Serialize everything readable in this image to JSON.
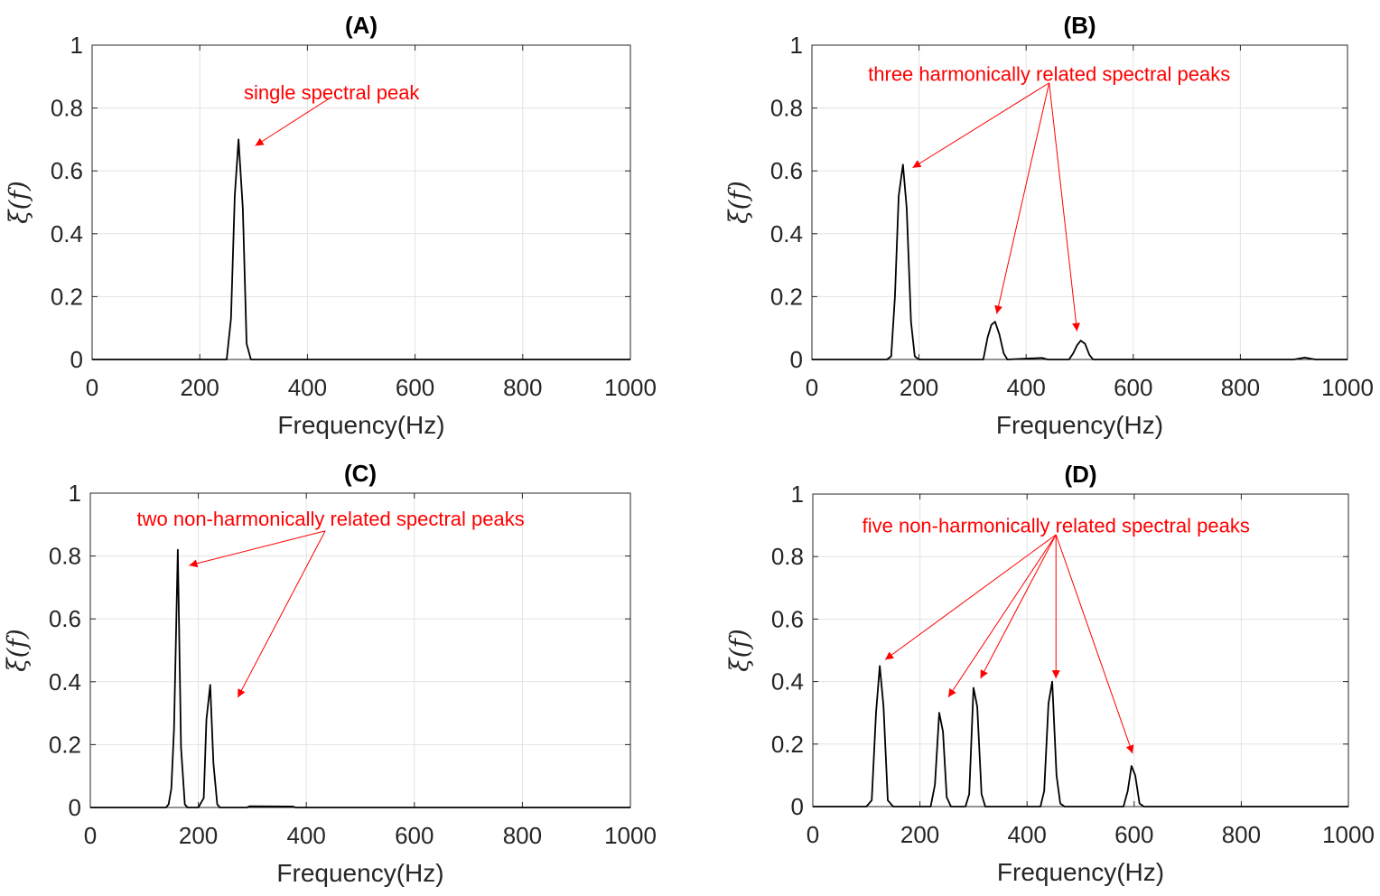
{
  "chart_data": [
    {
      "type": "line",
      "title": "(A)",
      "xlabel": "Frequency(Hz)",
      "ylabel": "ξ(f)",
      "xlim": [
        0,
        1000
      ],
      "ylim": [
        0,
        1
      ],
      "xticks": [
        "0",
        "200",
        "400",
        "600",
        "800",
        "1000"
      ],
      "yticks": [
        "0",
        "0.2",
        "0.4",
        "0.6",
        "0.8",
        "1"
      ],
      "grid": true,
      "series": [
        {
          "name": "spectrum",
          "color": "#000000",
          "x": [
            0,
            250,
            258,
            265,
            272,
            280,
            287,
            295,
            302,
            1000
          ],
          "y": [
            0,
            0,
            0.13,
            0.52,
            0.7,
            0.48,
            0.05,
            0,
            0,
            0
          ]
        }
      ],
      "annotation": {
        "text": "single spectral peak",
        "color": "#ff0000",
        "anchor": [
          440,
          0.83
        ],
        "text_pos": [
          445,
          0.85
        ],
        "targets": [
          [
            303,
            0.68
          ]
        ]
      }
    },
    {
      "type": "line",
      "title": "(B)",
      "xlabel": "Frequency(Hz)",
      "ylabel": "ξ(f)",
      "xlim": [
        0,
        1000
      ],
      "ylim": [
        0,
        1
      ],
      "xticks": [
        "0",
        "200",
        "400",
        "600",
        "800",
        "1000"
      ],
      "yticks": [
        "0",
        "0.2",
        "0.4",
        "0.6",
        "0.8",
        "1"
      ],
      "grid": true,
      "series": [
        {
          "name": "spectrum",
          "color": "#000000",
          "x": [
            0,
            140,
            148,
            155,
            162,
            170,
            177,
            185,
            192,
            200,
            320,
            328,
            335,
            342,
            350,
            358,
            365,
            430,
            440,
            480,
            488,
            495,
            502,
            510,
            518,
            525,
            900,
            920,
            940,
            1000
          ],
          "y": [
            0,
            0,
            0.01,
            0.2,
            0.52,
            0.62,
            0.48,
            0.12,
            0.01,
            0,
            0,
            0.07,
            0.11,
            0.12,
            0.08,
            0.02,
            0,
            0.005,
            0,
            0,
            0.02,
            0.045,
            0.06,
            0.05,
            0.015,
            0,
            0,
            0.006,
            0,
            0
          ]
        }
      ],
      "annotation": {
        "text": "three harmonically related spectral peaks",
        "color": "#ff0000",
        "anchor": [
          443,
          0.88
        ],
        "text_pos": [
          443,
          0.91
        ],
        "targets": [
          [
            188,
            0.61
          ],
          [
            345,
            0.145
          ],
          [
            495,
            0.09
          ]
        ]
      }
    },
    {
      "type": "line",
      "title": "(C)",
      "xlabel": "Frequency(Hz)",
      "ylabel": "ξ(f)",
      "xlim": [
        0,
        1000
      ],
      "ylim": [
        0,
        1
      ],
      "xticks": [
        "0",
        "200",
        "400",
        "600",
        "800",
        "1000"
      ],
      "yticks": [
        "0",
        "0.2",
        "0.4",
        "0.6",
        "0.8",
        "1"
      ],
      "grid": true,
      "series": [
        {
          "name": "spectrum",
          "color": "#000000",
          "x": [
            0,
            140,
            145,
            150,
            155,
            162,
            168,
            175,
            180,
            195,
            200,
            210,
            215,
            222,
            228,
            235,
            240,
            250,
            290,
            295,
            375,
            380,
            1000
          ],
          "y": [
            0,
            0,
            0.01,
            0.06,
            0.25,
            0.82,
            0.19,
            0.01,
            0,
            0,
            0,
            0.03,
            0.28,
            0.39,
            0.14,
            0.01,
            0,
            0,
            0,
            0.004,
            0.003,
            0,
            0
          ]
        }
      ],
      "annotation": {
        "text": "two non-harmonically related spectral peaks",
        "color": "#ff0000",
        "anchor": [
          435,
          0.88
        ],
        "text_pos": [
          445,
          0.92
        ],
        "targets": [
          [
            183,
            0.77
          ],
          [
            273,
            0.35
          ]
        ]
      }
    },
    {
      "type": "line",
      "title": "(D)",
      "xlabel": "Frequency(Hz)",
      "ylabel": "ξ(f)",
      "xlim": [
        0,
        1000
      ],
      "ylim": [
        0,
        1
      ],
      "xticks": [
        "0",
        "200",
        "400",
        "600",
        "800",
        "1000"
      ],
      "yticks": [
        "0",
        "0.2",
        "0.4",
        "0.6",
        "0.8",
        "1"
      ],
      "grid": true,
      "series": [
        {
          "name": "spectrum",
          "color": "#000000",
          "x": [
            0,
            100,
            110,
            118,
            125,
            132,
            140,
            150,
            220,
            228,
            236,
            243,
            250,
            258,
            265,
            285,
            292,
            300,
            307,
            315,
            322,
            425,
            432,
            440,
            447,
            455,
            462,
            470,
            580,
            588,
            595,
            602,
            610,
            618,
            1000
          ],
          "y": [
            0,
            0,
            0.02,
            0.3,
            0.45,
            0.32,
            0.02,
            0,
            0,
            0.07,
            0.3,
            0.24,
            0.03,
            0,
            0,
            0,
            0.04,
            0.38,
            0.32,
            0.04,
            0,
            0,
            0.05,
            0.33,
            0.4,
            0.1,
            0.01,
            0,
            0,
            0.05,
            0.13,
            0.1,
            0.01,
            0,
            0
          ]
        }
      ],
      "annotation": {
        "text": "five non-harmonically related spectral peaks",
        "color": "#ff0000",
        "anchor": [
          454,
          0.87
        ],
        "text_pos": [
          454,
          0.9
        ],
        "targets": [
          [
            135,
            0.47
          ],
          [
            253,
            0.35
          ],
          [
            313,
            0.41
          ],
          [
            454,
            0.41
          ],
          [
            597,
            0.17
          ]
        ]
      }
    }
  ]
}
